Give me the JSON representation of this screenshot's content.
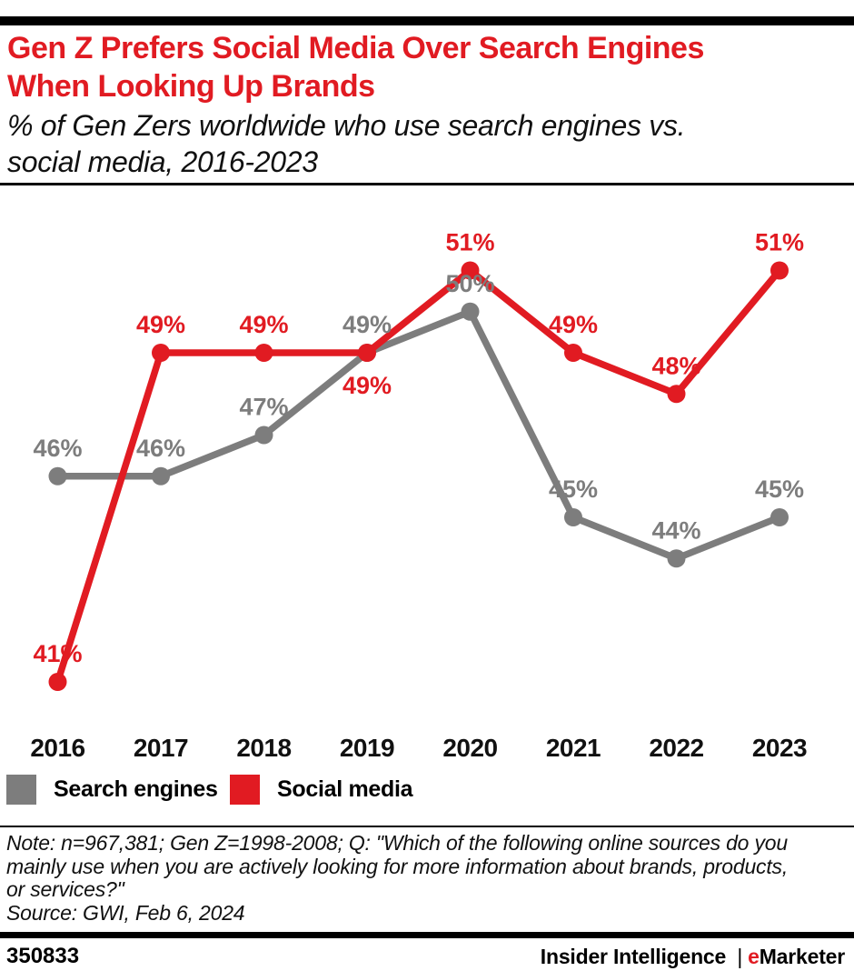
{
  "header": {
    "title_lines": [
      "Gen Z Prefers Social Media Over Search Engines",
      "When Looking Up Brands"
    ],
    "subtitle_lines": [
      "% of Gen Zers worldwide who use search engines vs.",
      "social media, 2016-2023"
    ]
  },
  "chart_data": {
    "type": "line",
    "title": "Gen Z Prefers Social Media Over Search Engines When Looking Up Brands",
    "subtitle": "% of Gen Zers worldwide who use search engines vs. social media, 2016-2023",
    "categories": [
      "2016",
      "2017",
      "2018",
      "2019",
      "2020",
      "2021",
      "2022",
      "2023"
    ],
    "series": [
      {
        "name": "Search engines",
        "color": "#7d7d7d",
        "values": [
          46,
          46,
          47,
          49,
          50,
          45,
          44,
          45
        ],
        "label_positions": [
          "above",
          "above",
          "above",
          "above",
          "above",
          "above",
          "above",
          "above"
        ]
      },
      {
        "name": "Social media",
        "color": "#e11b22",
        "values": [
          41,
          49,
          49,
          49,
          51,
          49,
          48,
          51
        ],
        "label_positions": [
          "above",
          "above",
          "above",
          "below",
          "above",
          "above",
          "above",
          "above"
        ]
      }
    ],
    "value_suffix": "%",
    "xlabel": "",
    "ylabel": "",
    "ylim": [
      40,
      52
    ],
    "grid": false,
    "axes_shown": false,
    "data_labels": true,
    "legend_position": "bottom-left"
  },
  "note": {
    "lines": [
      "Note: n=967,381; Gen Z=1998-2008; Q: \"Which of the following online sources do you",
      "mainly use when you are actively looking for more information about brands, products,",
      "or services?\""
    ],
    "source": "Source: GWI, Feb 6, 2024"
  },
  "footer": {
    "chart_id": "350833",
    "brand_left": "Insider Intelligence",
    "brand_sep": "|",
    "brand_e": "e",
    "brand_rest": "Marketer"
  },
  "colors": {
    "accent_red": "#e11b22",
    "series_gray": "#7d7d7d",
    "bar_black": "#000000"
  }
}
